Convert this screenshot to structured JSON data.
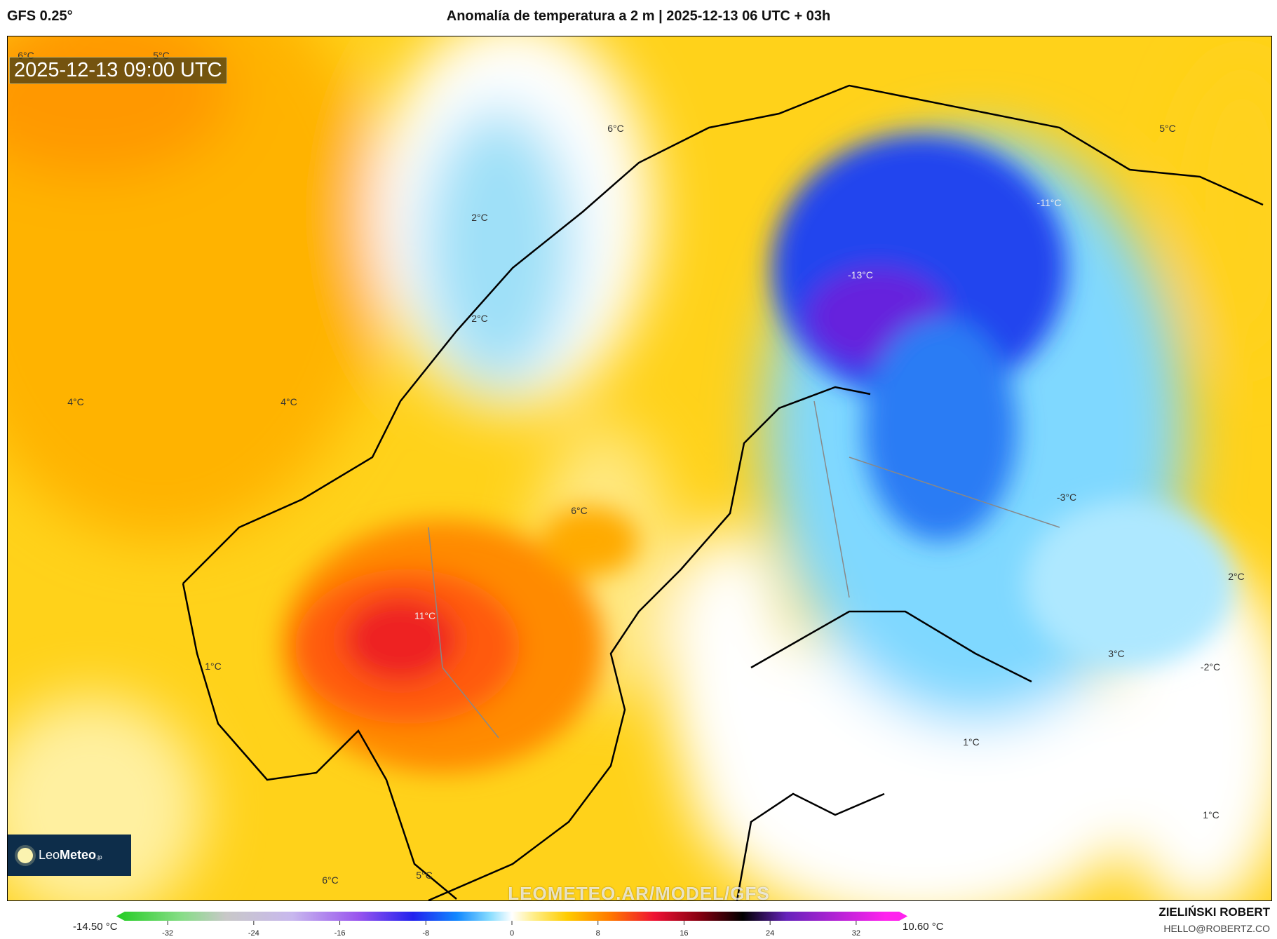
{
  "header": {
    "model": "GFS 0.25°",
    "title": "Anomalía de temperatura a 2 m | 2025-12-13 06 UTC + 03h"
  },
  "map": {
    "valid_time": "2025-12-13 09:00 UTC",
    "watermark": "LEOMETEO.AR/MODEL/GFS",
    "logo": {
      "prefix": "Leo",
      "bold": "Meteo",
      "suffix": ".jp"
    },
    "labels": [
      {
        "text": "6°C",
        "lon_lat_hint": "NW ocean"
      },
      {
        "text": "5°C"
      },
      {
        "text": "6°C"
      },
      {
        "text": "2°C"
      },
      {
        "text": "2°C"
      },
      {
        "text": "4°C"
      },
      {
        "text": "4°C"
      },
      {
        "text": "6°C"
      },
      {
        "text": "11°C"
      },
      {
        "text": "1°C"
      },
      {
        "text": "6°C"
      },
      {
        "text": "5°C"
      },
      {
        "text": "-13°C"
      },
      {
        "text": "-11°C"
      },
      {
        "text": "5°C"
      },
      {
        "text": "-3°C"
      },
      {
        "text": "2°C"
      },
      {
        "text": "3°C"
      },
      {
        "text": "-2°C"
      },
      {
        "text": "1°C"
      },
      {
        "text": "1°C"
      }
    ]
  },
  "colorbar": {
    "min_label": "-14.50 °C",
    "max_label": "10.60 °C",
    "ticks": [
      "-32",
      "-24",
      "-16",
      "-8",
      "0",
      "8",
      "16",
      "24",
      "32"
    ],
    "range": [
      -36,
      36
    ],
    "stops": [
      {
        "v": -36,
        "c": "#22cc22"
      },
      {
        "v": -30,
        "c": "#88dd88"
      },
      {
        "v": -26,
        "c": "#c8c8c8"
      },
      {
        "v": -20,
        "c": "#c8b8ee"
      },
      {
        "v": -14,
        "c": "#9955ee"
      },
      {
        "v": -9,
        "c": "#2222ee"
      },
      {
        "v": -5,
        "c": "#1188ff"
      },
      {
        "v": -2,
        "c": "#88ddff"
      },
      {
        "v": 0,
        "c": "#ffffff"
      },
      {
        "v": 2,
        "c": "#ffee88"
      },
      {
        "v": 5,
        "c": "#ffcc00"
      },
      {
        "v": 9,
        "c": "#ff7700"
      },
      {
        "v": 13,
        "c": "#ee1133"
      },
      {
        "v": 17,
        "c": "#880011"
      },
      {
        "v": 21,
        "c": "#000000"
      },
      {
        "v": 25,
        "c": "#6622bb"
      },
      {
        "v": 34,
        "c": "#ff22ee"
      }
    ]
  },
  "footer": {
    "author": "ZIELIŃSKI ROBERT",
    "email": "HELLO@ROBERTZ.CO"
  }
}
